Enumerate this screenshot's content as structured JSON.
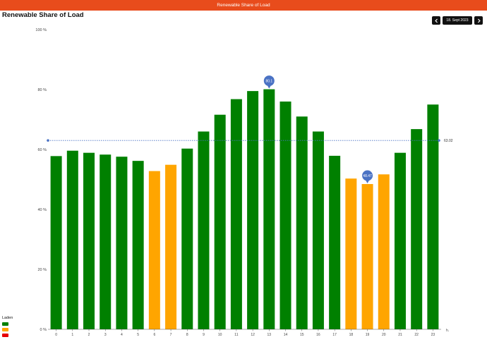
{
  "header": {
    "title": "Renewable Share of Load"
  },
  "page": {
    "title": "Renewable Share of Load"
  },
  "date_nav": {
    "date": "18. Sept 2023",
    "prev_icon": "chevron-left-icon",
    "next_icon": "chevron-right-icon"
  },
  "legend": {
    "title": "Laden",
    "items": [
      {
        "color": "#008000"
      },
      {
        "color": "#ffa500"
      },
      {
        "color": "#e60000"
      }
    ]
  },
  "colors": {
    "green": "#008000",
    "orange": "#ffa500",
    "red": "#e60000",
    "accent": "#4a72c4",
    "topbar": "#e84c1c"
  },
  "chart_data": {
    "type": "bar",
    "x_unit_label": "h",
    "categories": [
      "0",
      "1",
      "2",
      "3",
      "4",
      "5",
      "6",
      "7",
      "8",
      "9",
      "10",
      "11",
      "12",
      "13",
      "14",
      "15",
      "16",
      "17",
      "18",
      "19",
      "20",
      "21",
      "22",
      "23"
    ],
    "values": [
      57.8,
      59.6,
      58.9,
      58.3,
      57.6,
      56.2,
      52.8,
      54.9,
      60.3,
      66.0,
      71.6,
      76.8,
      79.5,
      80.1,
      76.0,
      71.0,
      66.0,
      57.9,
      50.3,
      48.47,
      51.7,
      58.9,
      66.8,
      75.0
    ],
    "bar_colors": [
      "#008000",
      "#008000",
      "#008000",
      "#008000",
      "#008000",
      "#008000",
      "#ffa500",
      "#ffa500",
      "#008000",
      "#008000",
      "#008000",
      "#008000",
      "#008000",
      "#008000",
      "#008000",
      "#008000",
      "#008000",
      "#008000",
      "#ffa500",
      "#ffa500",
      "#ffa500",
      "#008000",
      "#008000",
      "#008000"
    ],
    "y_ticks": [
      "0 %",
      "20 %",
      "40 %",
      "60 %",
      "80 %",
      "100 %"
    ],
    "ylim": [
      0,
      100
    ],
    "average": {
      "value": 63.02,
      "label": "63.02"
    },
    "max_marker": {
      "index": 13,
      "label": "80.1"
    },
    "min_marker": {
      "index": 19,
      "label": "48.47"
    }
  }
}
